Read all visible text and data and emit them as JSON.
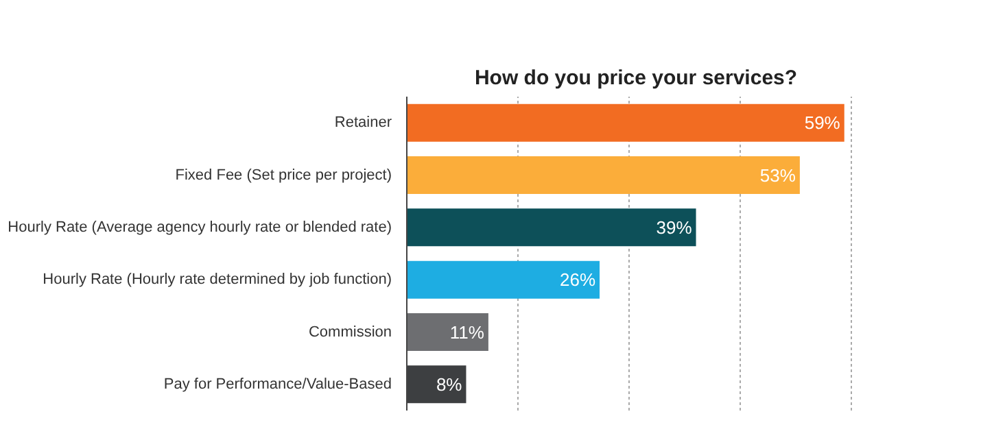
{
  "chart_data": {
    "type": "bar",
    "orientation": "horizontal",
    "title": "How do you price your services?",
    "categories": [
      "Retainer",
      "Fixed Fee (Set price per project)",
      "Hourly Rate (Average agency hourly rate or blended rate)",
      "Hourly Rate (Hourly rate determined by job function)",
      "Commission",
      "Pay for Performance/Value-Based"
    ],
    "values": [
      59,
      53,
      39,
      26,
      11,
      8
    ],
    "colors": [
      "#f26c22",
      "#fbad3a",
      "#0d5059",
      "#1eade2",
      "#6d6e71",
      "#3d3f41"
    ],
    "value_labels": [
      "59%",
      "53%",
      "39%",
      "26%",
      "11%",
      "8%"
    ],
    "xticks": [
      {
        "value": 0,
        "label": null
      },
      {
        "value": 15,
        "label": null
      },
      {
        "value": 30,
        "label": null
      },
      {
        "value": 45,
        "label": null
      },
      {
        "value": 60,
        "label": null
      }
    ],
    "grid": "x"
  }
}
